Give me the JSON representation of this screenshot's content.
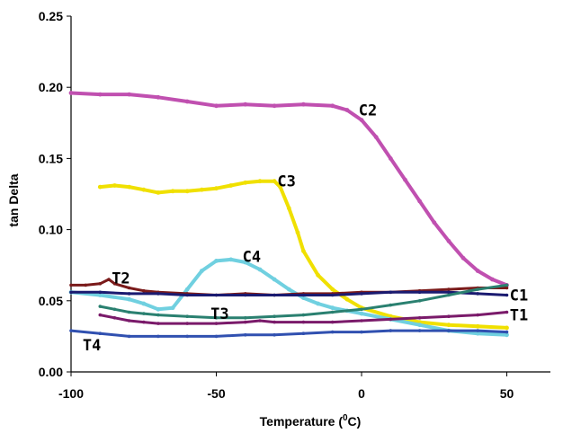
{
  "chart_data": {
    "type": "line",
    "title": "",
    "xlabel": "Temperature (",
    "xlabel_sup": "0",
    "xlabel_suffix": "C)",
    "ylabel": "tan Delta",
    "xlim": [
      -100,
      65
    ],
    "ylim": [
      0.0,
      0.25
    ],
    "xticks": [
      -100,
      -50,
      0,
      50
    ],
    "xtick_labels": [
      "-100",
      "-50",
      "0",
      "50"
    ],
    "yticks": [
      0.0,
      0.05,
      0.1,
      0.15,
      0.2,
      0.25
    ],
    "ytick_labels": [
      "0.00",
      "0.05",
      "0.10",
      "0.15",
      "0.20",
      "0.25"
    ],
    "grid": false,
    "legend": "none",
    "series": [
      {
        "name": "C2",
        "color": "#c050b0",
        "x": [
          -100,
          -90,
          -80,
          -70,
          -60,
          -50,
          -40,
          -30,
          -20,
          -10,
          -5,
          0,
          5,
          10,
          15,
          20,
          25,
          30,
          35,
          40,
          45,
          50
        ],
        "y": [
          0.196,
          0.195,
          0.195,
          0.193,
          0.19,
          0.187,
          0.188,
          0.187,
          0.188,
          0.187,
          0.184,
          0.177,
          0.165,
          0.15,
          0.135,
          0.12,
          0.105,
          0.092,
          0.08,
          0.071,
          0.065,
          0.061
        ]
      },
      {
        "name": "C3",
        "color": "#f0e000",
        "x": [
          -90,
          -85,
          -80,
          -75,
          -70,
          -65,
          -60,
          -55,
          -50,
          -45,
          -40,
          -35,
          -30,
          -28,
          -25,
          -22,
          -20,
          -15,
          -10,
          -5,
          0,
          10,
          20,
          30,
          40,
          50
        ],
        "y": [
          0.13,
          0.131,
          0.13,
          0.128,
          0.126,
          0.127,
          0.127,
          0.128,
          0.129,
          0.131,
          0.133,
          0.134,
          0.134,
          0.13,
          0.115,
          0.098,
          0.085,
          0.068,
          0.058,
          0.051,
          0.045,
          0.039,
          0.035,
          0.033,
          0.032,
          0.031
        ]
      },
      {
        "name": "C4",
        "color": "#70d0e0",
        "x": [
          -100,
          -90,
          -80,
          -75,
          -70,
          -65,
          -60,
          -55,
          -50,
          -45,
          -40,
          -35,
          -30,
          -25,
          -20,
          -15,
          -10,
          -5,
          0,
          10,
          20,
          30,
          40,
          50
        ],
        "y": [
          0.056,
          0.054,
          0.051,
          0.048,
          0.044,
          0.045,
          0.058,
          0.071,
          0.078,
          0.079,
          0.077,
          0.072,
          0.065,
          0.058,
          0.052,
          0.048,
          0.045,
          0.043,
          0.041,
          0.037,
          0.033,
          0.029,
          0.027,
          0.026
        ]
      },
      {
        "name": "T2",
        "color": "#7a1a1a",
        "x": [
          -100,
          -95,
          -90,
          -87,
          -85,
          -80,
          -75,
          -70,
          -60,
          -50,
          -40,
          -30,
          -20,
          -10,
          0,
          10,
          20,
          30,
          40,
          50
        ],
        "y": [
          0.061,
          0.061,
          0.062,
          0.065,
          0.062,
          0.059,
          0.057,
          0.056,
          0.055,
          0.054,
          0.055,
          0.054,
          0.055,
          0.055,
          0.056,
          0.056,
          0.057,
          0.058,
          0.059,
          0.059
        ]
      },
      {
        "name": "C1",
        "color": "#1a1a70",
        "x": [
          -100,
          -90,
          -80,
          -70,
          -60,
          -50,
          -40,
          -30,
          -20,
          -10,
          0,
          10,
          20,
          30,
          40,
          50
        ],
        "y": [
          0.056,
          0.056,
          0.055,
          0.055,
          0.054,
          0.054,
          0.054,
          0.054,
          0.054,
          0.054,
          0.055,
          0.056,
          0.056,
          0.056,
          0.055,
          0.054
        ]
      },
      {
        "name": "T3",
        "color": "#2a8070",
        "x": [
          -90,
          -85,
          -80,
          -75,
          -70,
          -60,
          -50,
          -40,
          -30,
          -20,
          -10,
          0,
          10,
          20,
          30,
          40,
          50
        ],
        "y": [
          0.046,
          0.044,
          0.042,
          0.041,
          0.04,
          0.039,
          0.038,
          0.038,
          0.039,
          0.04,
          0.042,
          0.044,
          0.047,
          0.05,
          0.054,
          0.058,
          0.061
        ]
      },
      {
        "name": "T1",
        "color": "#7a1a6a",
        "x": [
          -90,
          -85,
          -80,
          -75,
          -70,
          -60,
          -50,
          -40,
          -35,
          -30,
          -20,
          -10,
          0,
          10,
          20,
          30,
          40,
          50
        ],
        "y": [
          0.04,
          0.038,
          0.036,
          0.035,
          0.034,
          0.034,
          0.034,
          0.035,
          0.036,
          0.035,
          0.035,
          0.035,
          0.036,
          0.037,
          0.038,
          0.039,
          0.04,
          0.042
        ]
      },
      {
        "name": "T4",
        "color": "#3050b0",
        "x": [
          -100,
          -90,
          -80,
          -70,
          -60,
          -50,
          -40,
          -30,
          -20,
          -10,
          0,
          10,
          20,
          30,
          40,
          50
        ],
        "y": [
          0.029,
          0.027,
          0.025,
          0.025,
          0.025,
          0.025,
          0.026,
          0.026,
          0.027,
          0.028,
          0.028,
          0.029,
          0.029,
          0.029,
          0.029,
          0.028
        ]
      }
    ],
    "annotations": [
      {
        "text": "C2",
        "x": -1,
        "y": 0.184
      },
      {
        "text": "C3",
        "x": -29,
        "y": 0.134
      },
      {
        "text": "C4",
        "x": -41,
        "y": 0.081
      },
      {
        "text": "T2",
        "x": -86,
        "y": 0.066
      },
      {
        "text": "C1",
        "x": 51,
        "y": 0.054
      },
      {
        "text": "T3",
        "x": -52,
        "y": 0.041
      },
      {
        "text": "T1",
        "x": 51,
        "y": 0.04
      },
      {
        "text": "T4",
        "x": -96,
        "y": 0.019
      }
    ]
  }
}
